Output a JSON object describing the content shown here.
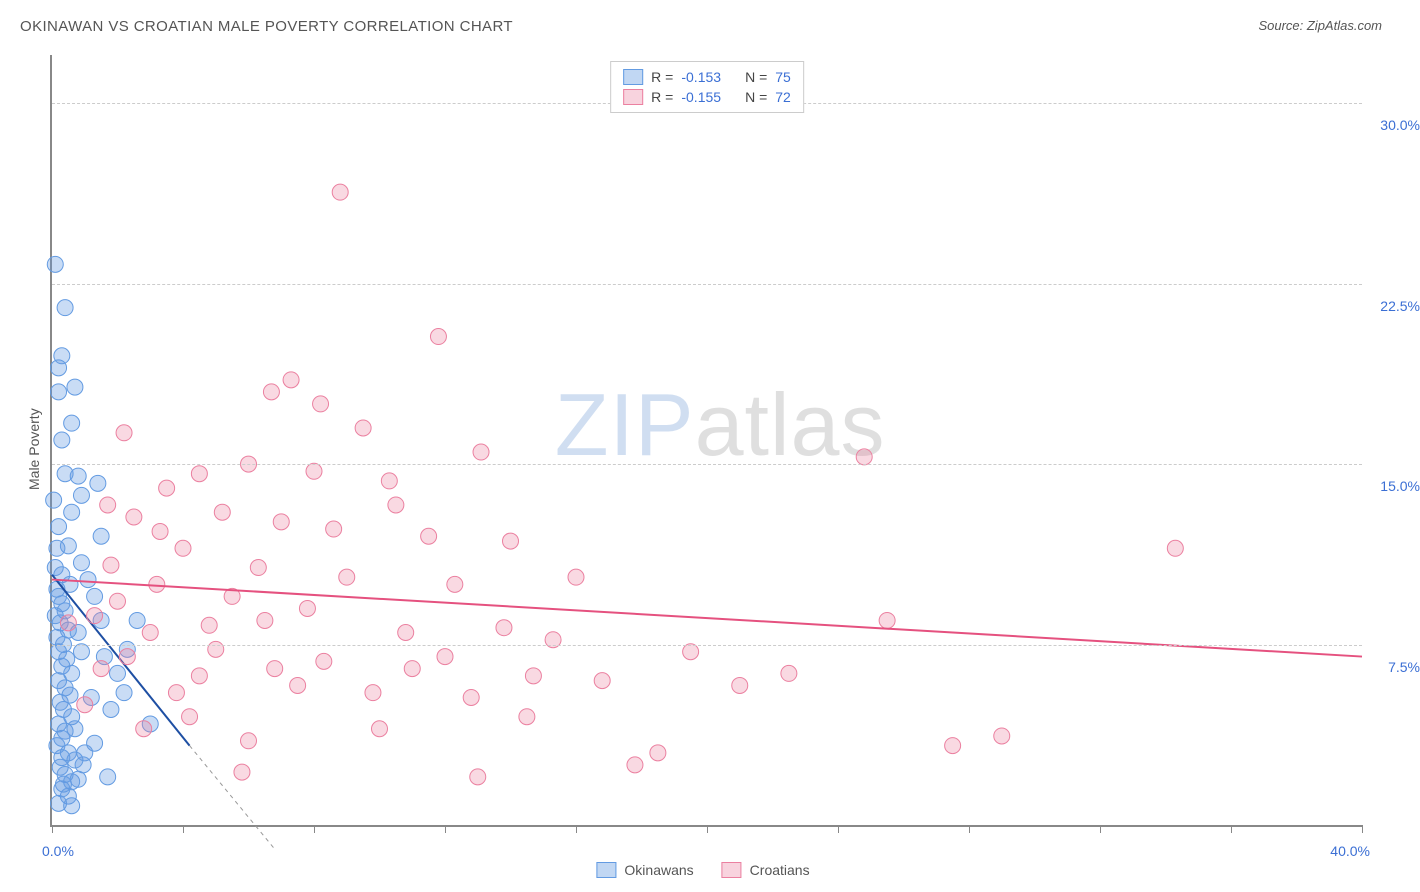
{
  "title": "OKINAWAN VS CROATIAN MALE POVERTY CORRELATION CHART",
  "source_label": "Source: ZipAtlas.com",
  "ylabel": "Male Poverty",
  "watermark": {
    "left": "ZIP",
    "right": "atlas"
  },
  "stats_legend": {
    "rows": [
      {
        "color": "blue",
        "r_label": "R =",
        "r_value": "-0.153",
        "n_label": "N =",
        "n_value": "75"
      },
      {
        "color": "pink",
        "r_label": "R =",
        "r_value": "-0.155",
        "n_label": "N =",
        "n_value": "72"
      }
    ]
  },
  "series_legend": {
    "items": [
      {
        "swatch": "blue",
        "label": "Okinawans"
      },
      {
        "swatch": "pink",
        "label": "Croatians"
      }
    ]
  },
  "chart": {
    "type": "scatter",
    "xlim": [
      0,
      40
    ],
    "ylim": [
      0,
      32
    ],
    "x_ticks": [
      0,
      4,
      8,
      12,
      16,
      20,
      24,
      28,
      32,
      36,
      40
    ],
    "x_tick_labels": {
      "0": "0.0%",
      "40": "40.0%"
    },
    "y_gridlines": [
      7.5,
      15.0,
      22.5,
      30.0
    ],
    "y_tick_labels": [
      "7.5%",
      "15.0%",
      "22.5%",
      "30.0%"
    ],
    "background_color": "#ffffff",
    "grid_color": "#cccccc",
    "axis_color": "#888888",
    "value_color": "#3b6fd4",
    "marker_radius": 8,
    "series": [
      {
        "name": "Okinawans",
        "fill": "rgba(99,155,226,0.35)",
        "stroke": "#639be2",
        "trend": {
          "x1": 0,
          "y1": 10.4,
          "x2": 4.2,
          "y2": 3.3,
          "dash_x2": 6.8,
          "dash_y2": -1.0,
          "color": "#1e4fa3",
          "width": 2
        },
        "points": [
          [
            0.1,
            23.3
          ],
          [
            0.4,
            21.5
          ],
          [
            0.3,
            19.5
          ],
          [
            0.2,
            19.0
          ],
          [
            0.7,
            18.2
          ],
          [
            0.2,
            18.0
          ],
          [
            0.6,
            16.7
          ],
          [
            0.3,
            16.0
          ],
          [
            0.8,
            14.5
          ],
          [
            0.9,
            13.7
          ],
          [
            0.05,
            13.5
          ],
          [
            0.6,
            13.0
          ],
          [
            0.2,
            12.4
          ],
          [
            0.5,
            11.6
          ],
          [
            0.9,
            10.9
          ],
          [
            0.1,
            10.7
          ],
          [
            0.3,
            10.4
          ],
          [
            0.15,
            9.8
          ],
          [
            0.2,
            9.5
          ],
          [
            0.3,
            9.2
          ],
          [
            0.4,
            8.9
          ],
          [
            0.1,
            8.7
          ],
          [
            0.25,
            8.4
          ],
          [
            0.5,
            8.1
          ],
          [
            0.8,
            8.0
          ],
          [
            0.15,
            7.8
          ],
          [
            0.35,
            7.5
          ],
          [
            0.2,
            7.2
          ],
          [
            0.45,
            6.9
          ],
          [
            0.3,
            6.6
          ],
          [
            0.6,
            6.3
          ],
          [
            0.2,
            6.0
          ],
          [
            0.4,
            5.7
          ],
          [
            0.55,
            5.4
          ],
          [
            0.25,
            5.1
          ],
          [
            0.35,
            4.8
          ],
          [
            0.6,
            4.5
          ],
          [
            0.2,
            4.2
          ],
          [
            0.4,
            3.9
          ],
          [
            0.3,
            3.6
          ],
          [
            0.15,
            3.3
          ],
          [
            0.5,
            3.0
          ],
          [
            0.7,
            2.7
          ],
          [
            0.25,
            2.4
          ],
          [
            0.4,
            2.1
          ],
          [
            0.6,
            1.8
          ],
          [
            0.3,
            1.5
          ],
          [
            0.5,
            1.2
          ],
          [
            0.2,
            0.9
          ],
          [
            1.5,
            12.0
          ],
          [
            1.3,
            9.5
          ],
          [
            1.6,
            7.0
          ],
          [
            2.0,
            6.3
          ],
          [
            1.8,
            4.8
          ],
          [
            1.4,
            14.2
          ],
          [
            3.0,
            4.2
          ],
          [
            2.6,
            8.5
          ],
          [
            1.1,
            10.2
          ],
          [
            0.9,
            7.2
          ],
          [
            1.2,
            5.3
          ],
          [
            0.7,
            4.0
          ],
          [
            0.95,
            2.5
          ],
          [
            1.3,
            3.4
          ],
          [
            1.7,
            2.0
          ],
          [
            2.2,
            5.5
          ],
          [
            0.4,
            14.6
          ],
          [
            0.8,
            1.9
          ],
          [
            0.6,
            0.8
          ],
          [
            0.35,
            1.7
          ],
          [
            1.0,
            3.0
          ],
          [
            1.5,
            8.5
          ],
          [
            2.3,
            7.3
          ],
          [
            0.15,
            11.5
          ],
          [
            0.55,
            10.0
          ],
          [
            0.3,
            2.8
          ]
        ]
      },
      {
        "name": "Croatians",
        "fill": "rgba(235,128,160,0.30)",
        "stroke": "#eb80a0",
        "trend": {
          "x1": 0,
          "y1": 10.2,
          "x2": 40,
          "y2": 7.0,
          "color": "#e5517f",
          "width": 2
        },
        "points": [
          [
            8.8,
            26.3
          ],
          [
            11.8,
            20.3
          ],
          [
            7.3,
            18.5
          ],
          [
            8.2,
            17.5
          ],
          [
            6.7,
            18.0
          ],
          [
            9.5,
            16.5
          ],
          [
            6.0,
            15.0
          ],
          [
            4.5,
            14.6
          ],
          [
            10.3,
            14.3
          ],
          [
            13.1,
            15.5
          ],
          [
            24.8,
            15.3
          ],
          [
            5.2,
            13.0
          ],
          [
            7.0,
            12.6
          ],
          [
            8.6,
            12.3
          ],
          [
            11.5,
            12.0
          ],
          [
            14.0,
            11.8
          ],
          [
            3.5,
            14.0
          ],
          [
            2.5,
            12.8
          ],
          [
            1.7,
            13.3
          ],
          [
            4.0,
            11.5
          ],
          [
            6.3,
            10.7
          ],
          [
            9.0,
            10.3
          ],
          [
            12.3,
            10.0
          ],
          [
            16.0,
            10.3
          ],
          [
            3.2,
            10.0
          ],
          [
            5.5,
            9.5
          ],
          [
            7.8,
            9.0
          ],
          [
            2.0,
            9.3
          ],
          [
            1.3,
            8.7
          ],
          [
            4.8,
            8.3
          ],
          [
            6.5,
            8.5
          ],
          [
            10.8,
            8.0
          ],
          [
            13.8,
            8.2
          ],
          [
            15.3,
            7.7
          ],
          [
            3.0,
            8.0
          ],
          [
            5.0,
            7.3
          ],
          [
            2.3,
            7.0
          ],
          [
            8.3,
            6.8
          ],
          [
            11.0,
            6.5
          ],
          [
            7.5,
            5.8
          ],
          [
            9.8,
            5.5
          ],
          [
            12.8,
            5.3
          ],
          [
            16.8,
            6.0
          ],
          [
            14.5,
            4.5
          ],
          [
            13.0,
            2.0
          ],
          [
            17.8,
            2.5
          ],
          [
            18.5,
            3.0
          ],
          [
            6.0,
            3.5
          ],
          [
            10.0,
            4.0
          ],
          [
            4.2,
            4.5
          ],
          [
            5.8,
            2.2
          ],
          [
            3.8,
            5.5
          ],
          [
            2.8,
            4.0
          ],
          [
            1.5,
            6.5
          ],
          [
            1.0,
            5.0
          ],
          [
            0.5,
            8.4
          ],
          [
            21.0,
            5.8
          ],
          [
            22.5,
            6.3
          ],
          [
            25.5,
            8.5
          ],
          [
            27.5,
            3.3
          ],
          [
            29.0,
            3.7
          ],
          [
            34.3,
            11.5
          ],
          [
            19.5,
            7.2
          ],
          [
            8.0,
            14.7
          ],
          [
            6.8,
            6.5
          ],
          [
            4.5,
            6.2
          ],
          [
            10.5,
            13.3
          ],
          [
            3.3,
            12.2
          ],
          [
            1.8,
            10.8
          ],
          [
            2.2,
            16.3
          ],
          [
            12.0,
            7.0
          ],
          [
            14.7,
            6.2
          ]
        ]
      }
    ]
  }
}
